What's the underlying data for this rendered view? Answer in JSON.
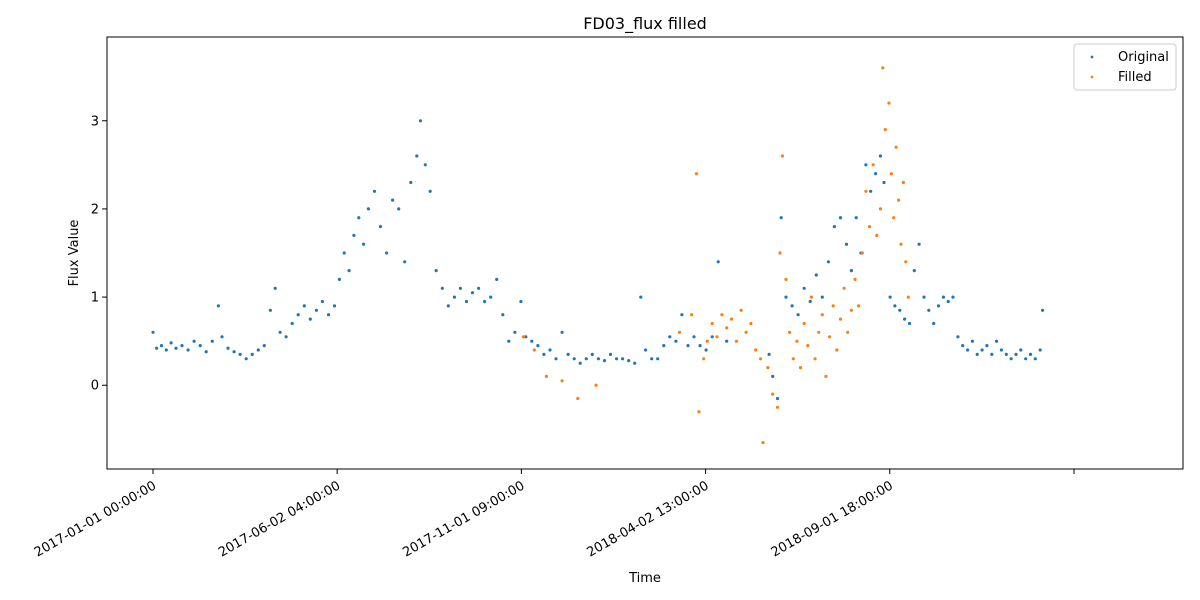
{
  "chart_data": {
    "type": "scatter",
    "title": "FD03_flux filled",
    "xlabel": "Time",
    "ylabel": "Flux Value",
    "x_type": "datetime",
    "xlim": [
      "2016-11-24 00:00:00",
      "2019-05-02 00:00:00"
    ],
    "ylim": [
      -0.95,
      3.95
    ],
    "x_ticks": [
      "2017-01-01 00:00:00",
      "2017-06-02 04:00:00",
      "2017-11-01 09:00:00",
      "2018-04-02 13:00:00",
      "2018-09-01 18:00:00",
      "2019-01-31 23:00:00"
    ],
    "x_tick_labels": [
      "2017-01-01 00:00:00",
      "2017-06-02 04:00:00",
      "2017-11-01 09:00:00",
      "2018-04-02 13:00:00",
      "2018-09-01 18:00:00",
      ""
    ],
    "y_ticks": [
      0,
      1,
      2,
      3
    ],
    "y_tick_labels": [
      "0",
      "1",
      "2",
      "3"
    ],
    "grid": false,
    "legend_position": "top-right",
    "series": [
      {
        "name": "Original",
        "color": "#1f77b4",
        "points": [
          [
            "2017-01-01",
            0.6
          ],
          [
            "2017-01-04",
            0.42
          ],
          [
            "2017-01-08",
            0.45
          ],
          [
            "2017-01-12",
            0.4
          ],
          [
            "2017-01-16",
            0.48
          ],
          [
            "2017-01-20",
            0.42
          ],
          [
            "2017-01-25",
            0.45
          ],
          [
            "2017-01-30",
            0.4
          ],
          [
            "2017-02-04",
            0.5
          ],
          [
            "2017-02-09",
            0.45
          ],
          [
            "2017-02-14",
            0.38
          ],
          [
            "2017-02-19",
            0.5
          ],
          [
            "2017-02-24",
            0.9
          ],
          [
            "2017-02-27",
            0.55
          ],
          [
            "2017-03-04",
            0.42
          ],
          [
            "2017-03-09",
            0.38
          ],
          [
            "2017-03-14",
            0.35
          ],
          [
            "2017-03-19",
            0.3
          ],
          [
            "2017-03-24",
            0.35
          ],
          [
            "2017-03-29",
            0.4
          ],
          [
            "2017-04-03",
            0.45
          ],
          [
            "2017-04-08",
            0.85
          ],
          [
            "2017-04-12",
            1.1
          ],
          [
            "2017-04-16",
            0.6
          ],
          [
            "2017-04-21",
            0.55
          ],
          [
            "2017-04-26",
            0.7
          ],
          [
            "2017-05-01",
            0.8
          ],
          [
            "2017-05-06",
            0.9
          ],
          [
            "2017-05-11",
            0.75
          ],
          [
            "2017-05-16",
            0.85
          ],
          [
            "2017-05-21",
            0.95
          ],
          [
            "2017-05-26",
            0.8
          ],
          [
            "2017-05-31",
            0.9
          ],
          [
            "2017-06-04",
            1.2
          ],
          [
            "2017-06-08",
            1.5
          ],
          [
            "2017-06-12",
            1.3
          ],
          [
            "2017-06-16",
            1.7
          ],
          [
            "2017-06-20",
            1.9
          ],
          [
            "2017-06-24",
            1.6
          ],
          [
            "2017-06-28",
            2.0
          ],
          [
            "2017-07-03",
            2.2
          ],
          [
            "2017-07-08",
            1.8
          ],
          [
            "2017-07-13",
            1.5
          ],
          [
            "2017-07-18",
            2.1
          ],
          [
            "2017-07-23",
            2.0
          ],
          [
            "2017-07-28",
            1.4
          ],
          [
            "2017-08-02",
            2.3
          ],
          [
            "2017-08-07",
            2.6
          ],
          [
            "2017-08-10",
            3.0
          ],
          [
            "2017-08-14",
            2.5
          ],
          [
            "2017-08-18",
            2.2
          ],
          [
            "2017-08-23",
            1.3
          ],
          [
            "2017-08-28",
            1.1
          ],
          [
            "2017-09-02",
            0.9
          ],
          [
            "2017-09-07",
            1.0
          ],
          [
            "2017-09-12",
            1.1
          ],
          [
            "2017-09-17",
            0.95
          ],
          [
            "2017-09-22",
            1.05
          ],
          [
            "2017-09-27",
            1.1
          ],
          [
            "2017-10-02",
            0.95
          ],
          [
            "2017-10-07",
            1.0
          ],
          [
            "2017-10-12",
            1.2
          ],
          [
            "2017-10-17",
            0.8
          ],
          [
            "2017-10-22",
            0.5
          ],
          [
            "2017-10-27",
            0.6
          ],
          [
            "2017-11-01",
            0.95
          ],
          [
            "2017-11-05",
            0.55
          ],
          [
            "2017-11-10",
            0.5
          ],
          [
            "2017-11-15",
            0.45
          ],
          [
            "2017-11-20",
            0.35
          ],
          [
            "2017-11-25",
            0.4
          ],
          [
            "2017-11-30",
            0.3
          ],
          [
            "2017-12-05",
            0.6
          ],
          [
            "2017-12-10",
            0.35
          ],
          [
            "2017-12-15",
            0.3
          ],
          [
            "2017-12-20",
            0.25
          ],
          [
            "2017-12-25",
            0.3
          ],
          [
            "2017-12-30",
            0.35
          ],
          [
            "2018-01-04",
            0.3
          ],
          [
            "2018-01-09",
            0.28
          ],
          [
            "2018-01-14",
            0.35
          ],
          [
            "2018-01-19",
            0.3
          ],
          [
            "2018-01-24",
            0.3
          ],
          [
            "2018-01-29",
            0.28
          ],
          [
            "2018-02-03",
            0.25
          ],
          [
            "2018-02-08",
            1.0
          ],
          [
            "2018-02-12",
            0.4
          ],
          [
            "2018-02-17",
            0.3
          ],
          [
            "2018-02-22",
            0.3
          ],
          [
            "2018-02-27",
            0.45
          ],
          [
            "2018-03-04",
            0.55
          ],
          [
            "2018-03-09",
            0.5
          ],
          [
            "2018-03-14",
            0.8
          ],
          [
            "2018-03-19",
            0.45
          ],
          [
            "2018-03-24",
            0.55
          ],
          [
            "2018-03-29",
            0.45
          ],
          [
            "2018-04-03",
            0.4
          ],
          [
            "2018-04-08",
            0.55
          ],
          [
            "2018-04-13",
            1.4
          ],
          [
            "2018-04-20",
            0.5
          ],
          [
            "2018-05-25",
            0.35
          ],
          [
            "2018-05-28",
            0.1
          ],
          [
            "2018-06-01",
            -0.15
          ],
          [
            "2018-06-04",
            1.9
          ],
          [
            "2018-06-08",
            1.0
          ],
          [
            "2018-06-13",
            0.9
          ],
          [
            "2018-06-18",
            0.8
          ],
          [
            "2018-06-23",
            1.1
          ],
          [
            "2018-06-28",
            0.95
          ],
          [
            "2018-07-03",
            1.25
          ],
          [
            "2018-07-08",
            1.0
          ],
          [
            "2018-07-13",
            1.4
          ],
          [
            "2018-07-18",
            1.8
          ],
          [
            "2018-07-23",
            1.9
          ],
          [
            "2018-07-28",
            1.6
          ],
          [
            "2018-08-01",
            1.3
          ],
          [
            "2018-08-05",
            1.9
          ],
          [
            "2018-08-09",
            1.5
          ],
          [
            "2018-08-13",
            2.5
          ],
          [
            "2018-08-17",
            2.2
          ],
          [
            "2018-08-21",
            2.4
          ],
          [
            "2018-08-25",
            2.6
          ],
          [
            "2018-08-28",
            2.3
          ],
          [
            "2018-09-02",
            1.0
          ],
          [
            "2018-09-06",
            0.9
          ],
          [
            "2018-09-10",
            0.85
          ],
          [
            "2018-09-14",
            0.75
          ],
          [
            "2018-09-18",
            0.7
          ],
          [
            "2018-09-22",
            1.3
          ],
          [
            "2018-09-26",
            1.6
          ],
          [
            "2018-09-30",
            1.0
          ],
          [
            "2018-10-04",
            0.85
          ],
          [
            "2018-10-08",
            0.7
          ],
          [
            "2018-10-12",
            0.9
          ],
          [
            "2018-10-16",
            1.0
          ],
          [
            "2018-10-20",
            0.95
          ],
          [
            "2018-10-24",
            1.0
          ],
          [
            "2018-10-28",
            0.55
          ],
          [
            "2018-11-01",
            0.45
          ],
          [
            "2018-11-05",
            0.4
          ],
          [
            "2018-11-09",
            0.5
          ],
          [
            "2018-11-13",
            0.35
          ],
          [
            "2018-11-17",
            0.4
          ],
          [
            "2018-11-21",
            0.45
          ],
          [
            "2018-11-25",
            0.35
          ],
          [
            "2018-11-29",
            0.5
          ],
          [
            "2018-12-03",
            0.4
          ],
          [
            "2018-12-07",
            0.35
          ],
          [
            "2018-12-11",
            0.3
          ],
          [
            "2018-12-15",
            0.35
          ],
          [
            "2018-12-19",
            0.4
          ],
          [
            "2018-12-23",
            0.3
          ],
          [
            "2018-12-27",
            0.35
          ],
          [
            "2018-12-31",
            0.3
          ],
          [
            "2019-01-04",
            0.4
          ],
          [
            "2019-01-06",
            0.85
          ]
        ]
      },
      {
        "name": "Filled",
        "color": "#ff7f0e",
        "points": [
          [
            "2017-11-03",
            0.55
          ],
          [
            "2017-11-12",
            0.4
          ],
          [
            "2017-11-22",
            0.1
          ],
          [
            "2017-12-05",
            0.05
          ],
          [
            "2017-12-18",
            -0.15
          ],
          [
            "2018-01-02",
            0.0
          ],
          [
            "2018-03-12",
            0.6
          ],
          [
            "2018-03-22",
            0.8
          ],
          [
            "2018-03-26",
            2.4
          ],
          [
            "2018-03-28",
            -0.3
          ],
          [
            "2018-04-01",
            0.3
          ],
          [
            "2018-04-04",
            0.5
          ],
          [
            "2018-04-08",
            0.7
          ],
          [
            "2018-04-12",
            0.55
          ],
          [
            "2018-04-16",
            0.8
          ],
          [
            "2018-04-20",
            0.65
          ],
          [
            "2018-04-24",
            0.75
          ],
          [
            "2018-04-28",
            0.5
          ],
          [
            "2018-05-02",
            0.85
          ],
          [
            "2018-05-06",
            0.6
          ],
          [
            "2018-05-10",
            0.7
          ],
          [
            "2018-05-14",
            0.4
          ],
          [
            "2018-05-18",
            0.3
          ],
          [
            "2018-05-20",
            -0.65
          ],
          [
            "2018-05-24",
            0.2
          ],
          [
            "2018-05-28",
            -0.1
          ],
          [
            "2018-06-01",
            -0.25
          ],
          [
            "2018-06-03",
            1.5
          ],
          [
            "2018-06-05",
            2.6
          ],
          [
            "2018-06-08",
            1.2
          ],
          [
            "2018-06-11",
            0.6
          ],
          [
            "2018-06-14",
            0.3
          ],
          [
            "2018-06-17",
            0.5
          ],
          [
            "2018-06-20",
            0.2
          ],
          [
            "2018-06-23",
            0.7
          ],
          [
            "2018-06-26",
            0.45
          ],
          [
            "2018-06-29",
            1.0
          ],
          [
            "2018-07-02",
            0.3
          ],
          [
            "2018-07-05",
            0.6
          ],
          [
            "2018-07-08",
            0.8
          ],
          [
            "2018-07-11",
            0.1
          ],
          [
            "2018-07-14",
            0.55
          ],
          [
            "2018-07-17",
            0.9
          ],
          [
            "2018-07-20",
            0.4
          ],
          [
            "2018-07-23",
            0.75
          ],
          [
            "2018-07-26",
            1.1
          ],
          [
            "2018-07-29",
            0.6
          ],
          [
            "2018-08-01",
            0.85
          ],
          [
            "2018-08-04",
            1.2
          ],
          [
            "2018-08-07",
            0.9
          ],
          [
            "2018-08-10",
            1.5
          ],
          [
            "2018-08-13",
            2.2
          ],
          [
            "2018-08-16",
            1.8
          ],
          [
            "2018-08-19",
            2.5
          ],
          [
            "2018-08-22",
            1.7
          ],
          [
            "2018-08-25",
            2.0
          ],
          [
            "2018-08-27",
            3.6
          ],
          [
            "2018-08-29",
            2.9
          ],
          [
            "2018-09-01",
            3.2
          ],
          [
            "2018-09-03",
            2.4
          ],
          [
            "2018-09-05",
            1.9
          ],
          [
            "2018-09-07",
            2.7
          ],
          [
            "2018-09-09",
            2.1
          ],
          [
            "2018-09-11",
            1.6
          ],
          [
            "2018-09-13",
            2.3
          ],
          [
            "2018-09-15",
            1.4
          ],
          [
            "2018-09-17",
            1.0
          ]
        ]
      }
    ]
  }
}
